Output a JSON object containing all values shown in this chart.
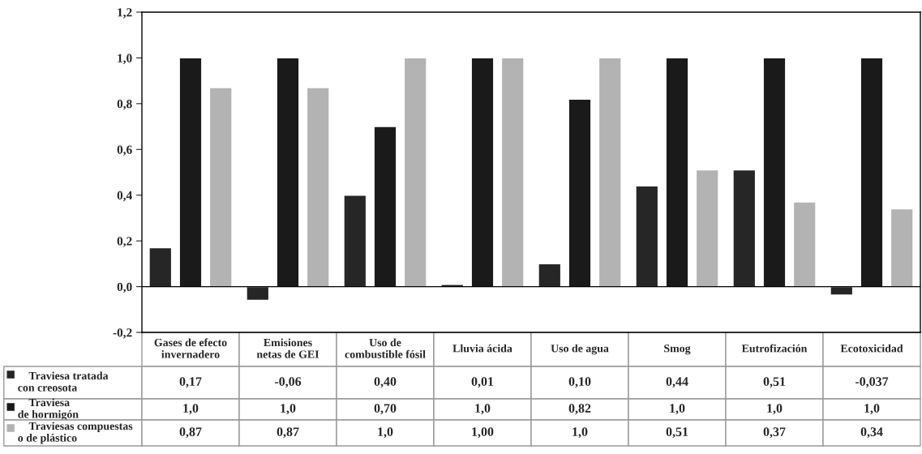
{
  "chart_data": {
    "type": "bar",
    "categories": [
      "Gases de efecto invernadero",
      "Emisiones netas de GEI",
      "Uso de combustible fósil",
      "Lluvia ácida",
      "Uso de agua",
      "Smog",
      "Eutrofización",
      "Ecotoxicidad"
    ],
    "series": [
      {
        "name": "Traviesa tratada con creosota",
        "color": "#262626",
        "values": [
          0.17,
          -0.06,
          0.4,
          0.01,
          0.1,
          0.44,
          0.51,
          -0.037
        ],
        "value_labels": [
          "0,17",
          "-0,06",
          "0,40",
          "0,01",
          "0,10",
          "0,44",
          "0,51",
          "-0,037"
        ]
      },
      {
        "name": "Traviesa de hormigón",
        "color": "#1a1a1a",
        "values": [
          1.0,
          1.0,
          0.7,
          1.0,
          0.82,
          1.0,
          1.0,
          1.0
        ],
        "value_labels": [
          "1,0",
          "1,0",
          "0,70",
          "1,0",
          "0,82",
          "1,0",
          "1,0",
          "1,0"
        ]
      },
      {
        "name": "Traviesas compuestas o de plástico",
        "color": "#b3b3b3",
        "values": [
          0.87,
          0.87,
          1.0,
          1.0,
          1.0,
          0.51,
          0.37,
          0.34
        ],
        "value_labels": [
          "0,87",
          "0,87",
          "1,0",
          "1,00",
          "1,0",
          "0,51",
          "0,37",
          "0,34"
        ]
      }
    ],
    "ylim": [
      -0.2,
      1.2
    ],
    "yticks": [
      {
        "value": -0.2,
        "label": "-0,2"
      },
      {
        "value": 0.0,
        "label": "0,0"
      },
      {
        "value": 0.2,
        "label": "0,2"
      },
      {
        "value": 0.4,
        "label": "0,4"
      },
      {
        "value": 0.6,
        "label": "0,6"
      },
      {
        "value": 0.8,
        "label": "0,8"
      },
      {
        "value": 1.0,
        "label": "1,0"
      },
      {
        "value": 1.2,
        "label": "1,2"
      }
    ],
    "ref_lines": [
      {
        "axis": "y",
        "value": 0,
        "color": "#000000"
      }
    ],
    "grid": false,
    "legend": "bottom left"
  }
}
